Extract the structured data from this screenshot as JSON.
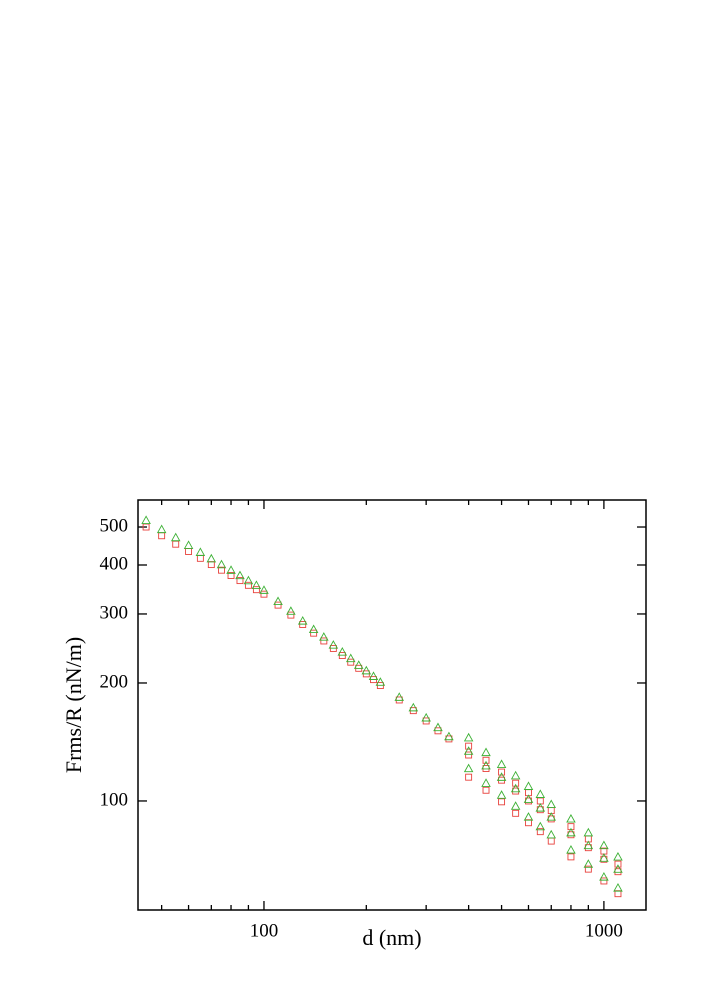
{
  "chart_data": {
    "type": "scatter",
    "xlabel": "d (nm)",
    "ylabel": "Frms/R (nN/m)",
    "log_x": true,
    "log_y": true,
    "x": [
      45,
      50,
      55,
      60,
      65,
      70,
      75,
      80,
      85,
      90,
      95,
      100,
      110,
      120,
      130,
      140,
      150,
      160,
      170,
      180,
      190,
      200,
      210,
      220,
      250,
      275,
      300,
      325,
      350,
      400,
      450,
      500,
      550,
      600,
      650,
      700,
      800,
      900,
      1000,
      1100,
      400,
      450,
      500,
      550,
      600,
      650,
      700,
      800,
      900,
      1000,
      1100,
      400,
      450,
      500,
      550,
      600,
      650,
      700,
      800,
      900,
      1000,
      1100
    ],
    "series": [
      {
        "name": "red",
        "marker": "square",
        "color": "#e8413c",
        "values": [
          500,
          475,
          452,
          433,
          416,
          401,
          388,
          376,
          365,
          355,
          346,
          337,
          316,
          298,
          282,
          268,
          256,
          245,
          235,
          226,
          218,
          211,
          204,
          197,
          181,
          170,
          160,
          151,
          144,
          131,
          121,
          113,
          106,
          100,
          95,
          90,
          82,
          76,
          71,
          66,
          115,
          106.5,
          99.5,
          93,
          88,
          83.5,
          79,
          72,
          67,
          62.5,
          58,
          138,
          127,
          118.5,
          111,
          105,
          100,
          94.5,
          86,
          80,
          74.5,
          69
        ]
      },
      {
        "name": "green",
        "marker": "triangle",
        "color": "#3cb034",
        "values": [
          520,
          493,
          470,
          449,
          431,
          415,
          401,
          388,
          376,
          365,
          355,
          345,
          323,
          305,
          288,
          274,
          262,
          250,
          240,
          231,
          222,
          215,
          208,
          201,
          184,
          173,
          163,
          154,
          146,
          134,
          123,
          115,
          107.5,
          101,
          96,
          91,
          83,
          77,
          71.5,
          67,
          121,
          111,
          103.5,
          97,
          91,
          86,
          82,
          75,
          69,
          64,
          60,
          145,
          133,
          124,
          116,
          109,
          104,
          98,
          90,
          83,
          77,
          72
        ]
      }
    ],
    "xlim": [
      42.6,
      1330
    ],
    "ylim": [
      52.7,
      586
    ],
    "xticks": [
      100,
      1000
    ],
    "xminorticks": [
      50,
      60,
      70,
      80,
      90,
      200,
      300,
      400,
      500,
      600,
      700,
      800,
      900
    ],
    "yticks": [
      100,
      200,
      300,
      400,
      500
    ]
  }
}
